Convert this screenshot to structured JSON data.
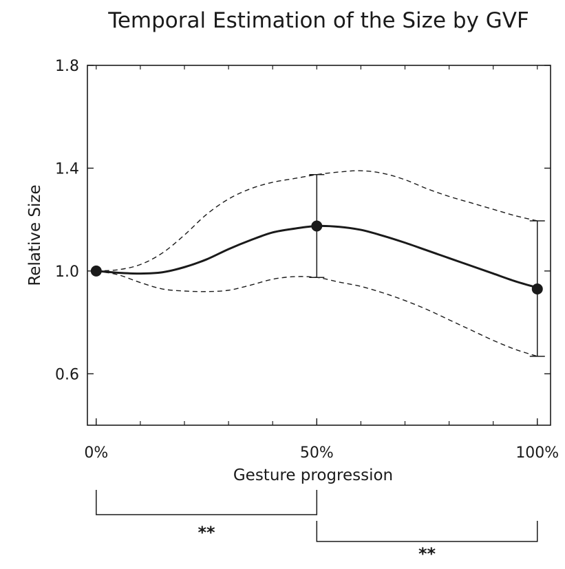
{
  "chart_data": {
    "type": "line",
    "title": "Temporal Estimation of the Size by GVF",
    "xlabel": "Gesture progression",
    "ylabel": "Relative Size",
    "xlim": [
      -2,
      103
    ],
    "ylim": [
      0.4,
      1.8
    ],
    "x_ticks": [
      0,
      50,
      100
    ],
    "x_tick_labels": [
      "0%",
      "50%",
      "100%"
    ],
    "y_ticks": [
      0.6,
      1.0,
      1.4,
      1.8
    ],
    "y_tick_labels": [
      "0.6",
      "1.0",
      "1.4",
      "1.8"
    ],
    "grid": false,
    "series": [
      {
        "role": "mean",
        "style": "solid",
        "x": [
          0,
          5,
          10,
          15,
          20,
          25,
          30,
          35,
          40,
          45,
          50,
          55,
          60,
          65,
          70,
          75,
          80,
          85,
          90,
          95,
          100
        ],
        "y": [
          1.0,
          0.993,
          0.99,
          0.995,
          1.015,
          1.045,
          1.085,
          1.12,
          1.15,
          1.165,
          1.175,
          1.172,
          1.16,
          1.137,
          1.11,
          1.08,
          1.05,
          1.02,
          0.99,
          0.96,
          0.935
        ]
      },
      {
        "role": "upper",
        "style": "dashed",
        "x": [
          0,
          5,
          10,
          15,
          20,
          25,
          30,
          35,
          40,
          45,
          50,
          55,
          60,
          65,
          70,
          75,
          80,
          85,
          90,
          95,
          100
        ],
        "y": [
          1.0,
          1.005,
          1.025,
          1.07,
          1.14,
          1.22,
          1.28,
          1.32,
          1.345,
          1.36,
          1.375,
          1.385,
          1.39,
          1.38,
          1.355,
          1.32,
          1.29,
          1.265,
          1.24,
          1.215,
          1.195
        ]
      },
      {
        "role": "lower",
        "style": "dashed",
        "x": [
          0,
          5,
          10,
          15,
          20,
          25,
          30,
          35,
          40,
          45,
          50,
          55,
          60,
          65,
          70,
          75,
          80,
          85,
          90,
          95,
          100
        ],
        "y": [
          1.0,
          0.985,
          0.955,
          0.93,
          0.922,
          0.92,
          0.925,
          0.945,
          0.968,
          0.978,
          0.975,
          0.957,
          0.94,
          0.915,
          0.885,
          0.85,
          0.81,
          0.77,
          0.73,
          0.695,
          0.668
        ]
      }
    ],
    "points": [
      {
        "x": 0,
        "y": 1.0
      },
      {
        "x": 50,
        "y": 1.175
      },
      {
        "x": 100,
        "y": 0.93
      }
    ],
    "error_bars": [
      {
        "x": 50,
        "low": 0.975,
        "high": 1.375
      },
      {
        "x": 100,
        "low": 0.668,
        "high": 1.195
      }
    ],
    "significance": [
      {
        "from": 0,
        "to": 50,
        "label": "**"
      },
      {
        "from": 50,
        "to": 100,
        "label": "**"
      }
    ]
  }
}
